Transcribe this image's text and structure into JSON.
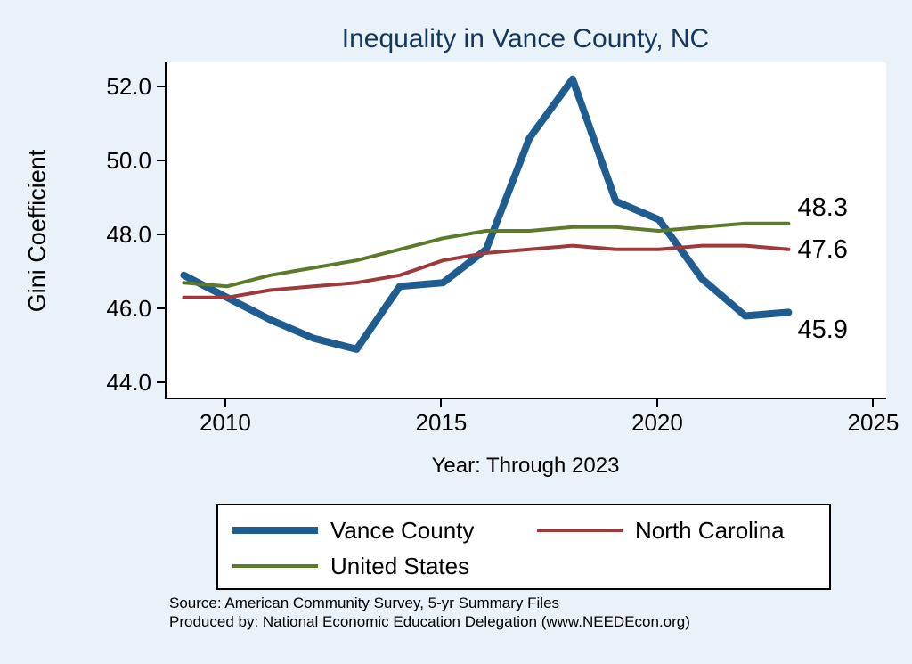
{
  "chart_data": {
    "type": "line",
    "title": "Inequality in Vance County, NC",
    "xlabel": "Year: Through 2023",
    "ylabel": "Gini Coefficient",
    "x": [
      2009,
      2010,
      2011,
      2012,
      2013,
      2014,
      2015,
      2016,
      2017,
      2018,
      2019,
      2020,
      2021,
      2022,
      2023
    ],
    "series": [
      {
        "name": "Vance County",
        "color": "#1f5c8f",
        "width": 8,
        "end_label": "45.9",
        "values": [
          46.9,
          46.3,
          45.7,
          45.2,
          44.9,
          46.6,
          46.7,
          47.6,
          50.6,
          52.2,
          48.9,
          48.4,
          46.8,
          45.8,
          45.9
        ]
      },
      {
        "name": "North Carolina",
        "color": "#9e3a3c",
        "width": 4,
        "end_label": "47.6",
        "values": [
          46.3,
          46.3,
          46.5,
          46.6,
          46.7,
          46.9,
          47.3,
          47.5,
          47.6,
          47.7,
          47.6,
          47.6,
          47.7,
          47.7,
          47.6
        ]
      },
      {
        "name": "United States",
        "color": "#5d7a2c",
        "width": 4,
        "end_label": "48.3",
        "values": [
          46.7,
          46.6,
          46.9,
          47.1,
          47.3,
          47.6,
          47.9,
          48.1,
          48.1,
          48.2,
          48.2,
          48.1,
          48.2,
          48.3,
          48.3
        ]
      }
    ],
    "x_ticks": [
      2010,
      2015,
      2020,
      2025
    ],
    "y_ticks": [
      44.0,
      46.0,
      48.0,
      50.0,
      52.0
    ],
    "xlim": [
      2008.6,
      2025.3
    ],
    "ylim": [
      43.55,
      52.65
    ],
    "grid": false,
    "legend_position": "bottom"
  },
  "footer": {
    "source_line": "Source: American Community Survey, 5-yr Summary Files",
    "produced_line": "Produced by: National Economic Education Delegation (www.NEEDEcon.org)"
  },
  "colors": {
    "background": "#e9f2f9",
    "plot_background": "#ffffff",
    "title": "#15375e",
    "axis": "#000000",
    "text": "#000000"
  }
}
